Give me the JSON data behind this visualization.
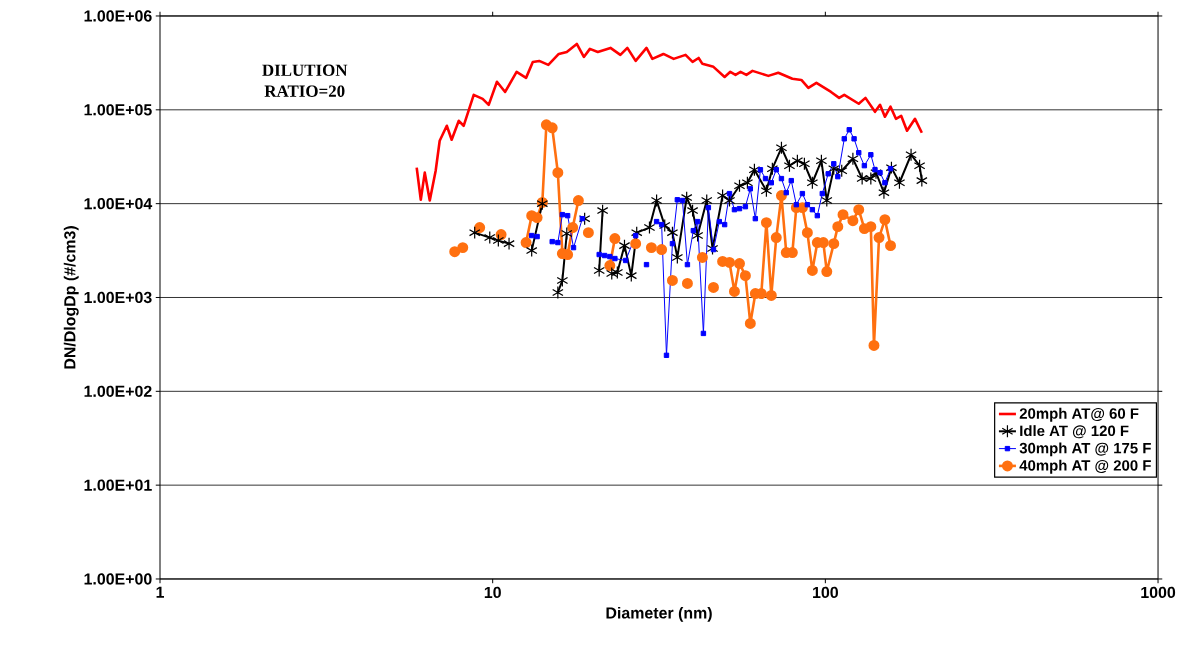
{
  "chart_data": {
    "type": "line",
    "xlabel": "Diameter (nm)",
    "ylabel": "DN/DlogDp (#/cm3)",
    "log": "xy",
    "grid": "y",
    "legend": "bottom right",
    "xlim": [
      1,
      1000
    ],
    "xticks": [
      1,
      10,
      100,
      1000
    ],
    "ylim": [
      1,
      1000000
    ],
    "yticks": [
      {
        "value": 1,
        "label": "1.00E+00"
      },
      {
        "value": 10,
        "label": "1.00E+01"
      },
      {
        "value": 100,
        "label": "1.00E+02"
      },
      {
        "value": 1000,
        "label": "1.00E+03"
      },
      {
        "value": 10000,
        "label": "1.00E+04"
      },
      {
        "value": 100000,
        "label": "1.00E+05"
      },
      {
        "value": 1000000,
        "label": "1.00E+06"
      }
    ],
    "annotations": [
      "DILUTION RATIO=20"
    ],
    "series": [
      {
        "name": "20mph AT@ 60 F",
        "color": "#ff0000",
        "marker": "none",
        "x": [
          5.91,
          6.08,
          6.25,
          6.47,
          6.74,
          6.93,
          7.28,
          7.53,
          7.91,
          8.18,
          8.77,
          9.33,
          9.73,
          10.3,
          10.9,
          11.8,
          12.6,
          13.2,
          13.8,
          14.7,
          15.8,
          16.7,
          17.9,
          18.8,
          19.6,
          20.7,
          22.6,
          24.2,
          25.4,
          26.9,
          29.0,
          30.2,
          32.6,
          35.0,
          38.0,
          39.9,
          41.6,
          42.7,
          46.1,
          49.8,
          51.8,
          53.7,
          55.6,
          57.9,
          60.4,
          67.4,
          72.2,
          79.6,
          84.7,
          88.9,
          94.0,
          104,
          110,
          114,
          126,
          132,
          141,
          146,
          151,
          157,
          163,
          169,
          176,
          186,
          195
        ],
        "values": [
          24200,
          11000,
          21400,
          10800,
          22400,
          46800,
          67600,
          48000,
          76400,
          67600,
          144500,
          131000,
          113000,
          199000,
          155000,
          254000,
          219000,
          324000,
          332000,
          301000,
          394000,
          414000,
          504000,
          366000,
          446000,
          414000,
          457000,
          385000,
          457000,
          332000,
          457000,
          349000,
          394000,
          349000,
          385000,
          324000,
          357000,
          309000,
          287000,
          224000,
          254000,
          236000,
          254000,
          236000,
          260000,
          230000,
          248000,
          214000,
          208000,
          171000,
          194000,
          155000,
          134000,
          144500,
          116000,
          134000,
          95200,
          113000,
          84300,
          108000,
          80200,
          86300,
          59800,
          80200,
          56900
        ]
      },
      {
        "name": "Idle AT @ 120 F",
        "color": "#000000",
        "marker": "cross",
        "x": [
          8.83,
          9.8,
          10.4,
          11.2,
          null,
          13.1,
          14.1,
          null,
          15.7,
          16.2,
          16.7,
          null,
          18.9,
          null,
          20.9,
          21.4,
          null,
          22.8,
          23.7,
          24.9,
          26.1,
          27.1,
          29.6,
          31.1,
          32.9,
          34.7,
          35.9,
          38.3,
          39.9,
          41.3,
          44.0,
          45.8,
          49.1,
          51.5,
          55.2,
          58.3,
          61.2,
          66.5,
          69.3,
          73.8,
          78.0,
          82.4,
          86.5,
          91.4,
          97.3,
          101,
          106,
          112,
          121,
          129,
          137,
          142,
          150,
          158,
          167,
          181,
          192,
          195
        ],
        "values": [
          4910,
          4350,
          4040,
          3750,
          null,
          3160,
          10000,
          null,
          1130,
          1520,
          4800,
          null,
          6920,
          null,
          1940,
          8430,
          null,
          1800,
          1850,
          3570,
          1710,
          4910,
          5560,
          10800,
          5840,
          4910,
          2670,
          11600,
          8430,
          4570,
          10800,
          3320,
          12200,
          10800,
          15500,
          16700,
          23000,
          13700,
          23600,
          39400,
          25400,
          28700,
          26600,
          16700,
          28700,
          10800,
          23600,
          22400,
          30100,
          18500,
          18500,
          21400,
          13100,
          24200,
          16700,
          33200,
          25400,
          17600
        ]
      },
      {
        "name": "30mph AT @ 175 F",
        "color": "#0000ff",
        "marker": "square",
        "x": [
          13.1,
          13.6,
          null,
          15.1,
          15.7,
          16.2,
          16.8,
          17.5,
          18.6,
          null,
          20.9,
          21.7,
          22.5,
          23.3,
          25.1,
          26.9,
          null,
          29.0,
          null,
          31.1,
          32.2,
          33.3,
          34.7,
          35.9,
          37.2,
          38.5,
          40.1,
          41.3,
          43.0,
          44.5,
          46.1,
          48.0,
          49.8,
          51.5,
          53.3,
          55.2,
          57.5,
          59.5,
          61.6,
          63.8,
          66.1,
          68.8,
          71.2,
          73.8,
          76.3,
          79.0,
          81.8,
          85.3,
          88.3,
          91.4,
          94.6,
          97.9,
          102,
          106,
          109,
          114,
          118,
          122,
          126,
          131,
          137,
          141,
          146,
          151,
          157
        ],
        "values": [
          4570,
          4460,
          null,
          3940,
          3850,
          7640,
          7450,
          3400,
          6920,
          null,
          2870,
          2800,
          2730,
          2600,
          2480,
          4570,
          null,
          2240,
          null,
          6440,
          5980,
          242,
          3750,
          11000,
          10800,
          2240,
          5160,
          6440,
          414,
          9070,
          3240,
          6440,
          5980,
          12800,
          8630,
          8850,
          9290,
          14400,
          6920,
          23000,
          18500,
          16700,
          23000,
          18500,
          13100,
          17600,
          9750,
          12800,
          9750,
          8630,
          7450,
          12800,
          20800,
          26600,
          19400,
          49100,
          61300,
          49100,
          34900,
          25400,
          33200,
          23000,
          21400,
          16700,
          23600
        ]
      },
      {
        "name": "40mph AT @ 200 F",
        "color": "#ff7010",
        "marker": "circle",
        "x": [
          7.69,
          8.13,
          null,
          9.14,
          null,
          10.6,
          null,
          12.6,
          13.1,
          13.6,
          14.1,
          14.5,
          15.1,
          15.7,
          16.2,
          16.8,
          17.4,
          18.1,
          null,
          19.4,
          null,
          22.5,
          23.3,
          null,
          26.9,
          null,
          30.0,
          null,
          32.2,
          null,
          34.7,
          null,
          38.5,
          null,
          42.7,
          null,
          46.1,
          null,
          49.1,
          51.5,
          53.3,
          55.2,
          57.5,
          59.5,
          61.6,
          64.2,
          66.5,
          68.8,
          71.2,
          73.8,
          76.3,
          79.6,
          81.8,
          85.3,
          88.3,
          91.4,
          94.6,
          98.6,
          101,
          106,
          109,
          113,
          121,
          126,
          131,
          137,
          140,
          145,
          151,
          157
        ],
        "values": [
          3080,
          3400,
          null,
          5560,
          null,
          4680,
          null,
          3850,
          7450,
          7100,
          10300,
          69200,
          64400,
          21400,
          2940,
          2870,
          5560,
          10800,
          null,
          4910,
          null,
          2190,
          4250,
          null,
          3750,
          null,
          3400,
          null,
          3240,
          null,
          1520,
          null,
          1410,
          null,
          2670,
          null,
          1280,
          null,
          2420,
          2360,
          1160,
          2300,
          1710,
          529,
          1100,
          1100,
          6280,
          1050,
          4350,
          12200,
          3010,
          3010,
          9070,
          9070,
          4910,
          1940,
          3850,
          3850,
          1890,
          3750,
          5690,
          7640,
          6590,
          8630,
          5420,
          5690,
          308,
          4350,
          6760,
          3570
        ]
      }
    ]
  }
}
